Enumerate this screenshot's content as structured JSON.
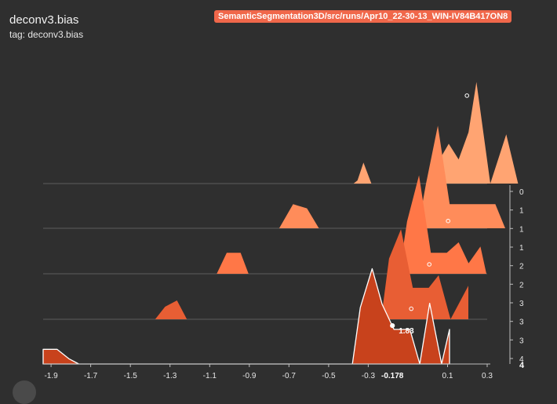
{
  "header": {
    "title": "deconv3.bias",
    "tag_line": "tag: deconv3.bias",
    "run_badge": "SemanticSegmentation3D/src/runs/Apr10_22-30-13_WIN-IV84B417ON8"
  },
  "colors": {
    "background": "#2f2f2f",
    "badge": "#f0674a",
    "grid": "#5a5a5a",
    "series": [
      "#ffa472",
      "#ff8c5a",
      "#ff7747",
      "#e85e34",
      "#c8421c"
    ]
  },
  "chart_data": {
    "type": "area",
    "subtype": "ridgeline-histogram-offset",
    "title": "deconv3.bias",
    "xlabel": "",
    "ylabel": "",
    "x_ticks": [
      -1.9,
      -1.7,
      -1.5,
      -1.3,
      -1.1,
      -0.9,
      -0.7,
      -0.5,
      -0.3,
      0.1,
      0.3
    ],
    "x_tick_labels": [
      "-1.9",
      "-1.7",
      "-1.5",
      "-1.3",
      "-1.1",
      "-0.9",
      "-0.7",
      "-0.5",
      "-0.3",
      "0.1",
      "0.3"
    ],
    "xlim": [
      -1.94,
      0.3
    ],
    "step_ticks": [
      "0",
      "1",
      "1",
      "1",
      "2",
      "2",
      "3",
      "3",
      "3",
      "4"
    ],
    "step_last_label": "4",
    "hover": {
      "x": -0.178,
      "x_label": "-0.178",
      "value_label": "1.83"
    },
    "series": [
      {
        "step": "0",
        "points": [
          [
            -0.75,
            0
          ],
          [
            -0.73,
            0.15
          ],
          [
            -0.7,
            1.0
          ],
          [
            -0.66,
            0
          ],
          [
            -0.34,
            0
          ],
          [
            -0.31,
            1.25
          ],
          [
            -0.27,
            1.9
          ],
          [
            -0.22,
            1.15
          ],
          [
            -0.17,
            2.45
          ],
          [
            -0.13,
            4.85
          ],
          [
            -0.06,
            0
          ],
          [
            0.02,
            2.35
          ],
          [
            0.08,
            0
          ]
        ]
      },
      {
        "step": "1",
        "points": [
          [
            -1.03,
            0
          ],
          [
            -0.96,
            1.15
          ],
          [
            -0.89,
            0.95
          ],
          [
            -0.83,
            0
          ],
          [
            -0.33,
            0
          ],
          [
            -0.29,
            2.1
          ],
          [
            -0.23,
            4.9
          ],
          [
            -0.17,
            1.15
          ],
          [
            0.06,
            1.15
          ],
          [
            0.11,
            0
          ]
        ]
      },
      {
        "step": "2",
        "points": [
          [
            -1.25,
            0
          ],
          [
            -1.2,
            1.0
          ],
          [
            -1.13,
            1.0
          ],
          [
            -1.09,
            0
          ],
          [
            -0.33,
            0
          ],
          [
            -0.29,
            2.5
          ],
          [
            -0.23,
            4.7
          ],
          [
            -0.17,
            1.0
          ],
          [
            -0.09,
            1.0
          ],
          [
            -0.03,
            1.5
          ],
          [
            0.02,
            0.5
          ],
          [
            0.08,
            1.3
          ],
          [
            0.11,
            0
          ]
        ]
      },
      {
        "step": "3",
        "points": [
          [
            -1.47,
            0
          ],
          [
            -1.42,
            0.6
          ],
          [
            -1.36,
            0.9
          ],
          [
            -1.31,
            0
          ],
          [
            -1.25,
            0
          ],
          [
            -0.33,
            0
          ],
          [
            -0.29,
            2.9
          ],
          [
            -0.23,
            4.3
          ],
          [
            -0.17,
            1.5
          ],
          [
            -0.09,
            1.5
          ],
          [
            -0.04,
            2.1
          ],
          [
            0.02,
            0
          ],
          [
            0.11,
            1.6
          ],
          [
            0.11,
            0
          ]
        ]
      },
      {
        "step": "4",
        "points": [
          [
            -1.94,
            0
          ],
          [
            -1.94,
            0.7
          ],
          [
            -1.87,
            0.7
          ],
          [
            -1.81,
            0.25
          ],
          [
            -1.76,
            0
          ],
          [
            -0.38,
            0
          ],
          [
            -0.34,
            2.7
          ],
          [
            -0.28,
            4.55
          ],
          [
            -0.23,
            2.85
          ],
          [
            -0.17,
            1.65
          ],
          [
            -0.09,
            1.65
          ],
          [
            -0.04,
            0
          ],
          [
            0.01,
            2.9
          ],
          [
            0.07,
            0
          ],
          [
            0.11,
            1.65
          ],
          [
            0.11,
            0
          ]
        ]
      }
    ],
    "markers": [
      {
        "step": "0",
        "x": -0.178,
        "y": 4.2
      },
      {
        "step": "1",
        "x": -0.178,
        "y": 0.35
      },
      {
        "step": "2",
        "x": -0.178,
        "y": 0.45
      },
      {
        "step": "3",
        "x": -0.178,
        "y": 0.5
      },
      {
        "step": "4",
        "x": -0.178,
        "y": 1.83
      }
    ],
    "grid": false,
    "legend": "none"
  }
}
